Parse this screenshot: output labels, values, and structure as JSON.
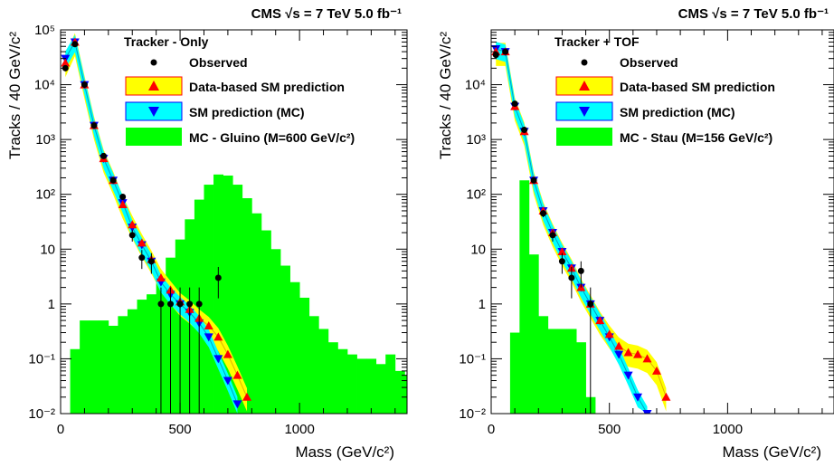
{
  "chart_data": [
    {
      "type": "histogram",
      "header": "CMS  √s = 7 TeV   5.0 fb⁻¹",
      "panel_label": "Tracker - Only",
      "xlabel": "Mass (GeV/c²)",
      "ylabel": "Tracks / 40 GeV/c²",
      "xlim": [
        0,
        1450
      ],
      "ylim": [
        0.01,
        100000
      ],
      "yscale": "log",
      "x_ticks": [
        0,
        500,
        1000
      ],
      "y_ticks": [
        "10⁻²",
        "10⁻¹",
        "1",
        "10",
        "10²",
        "10³",
        "10⁴",
        "10⁵"
      ],
      "legend": [
        "Observed",
        "Data-based SM prediction",
        "SM prediction (MC)",
        "MC - Gluino (M=600 GeV/c²)"
      ],
      "colors": {
        "observed": "#000000",
        "data_based": "#ffff00",
        "data_based_marker": "#ff0000",
        "mc": "#00ffff",
        "mc_marker": "#0000ff",
        "signal": "#00ff00"
      },
      "signal_bins": {
        "x0": 0,
        "width": 40,
        "values": [
          0.01,
          0.15,
          0.5,
          0.5,
          0.5,
          0.4,
          0.6,
          0.8,
          1.2,
          1.5,
          3,
          7,
          15,
          35,
          80,
          150,
          230,
          220,
          150,
          85,
          45,
          22,
          10,
          5,
          2.5,
          1.3,
          0.6,
          0.35,
          0.2,
          0.15,
          0.12,
          0.1,
          0.1,
          0.08,
          0.12,
          0.06,
          0.05,
          0.01,
          0.01,
          0.2
        ]
      },
      "observed": {
        "x": [
          20,
          60,
          100,
          140,
          180,
          220,
          260,
          300,
          340,
          380,
          420,
          460,
          500,
          540,
          580,
          660
        ],
        "y": [
          20000,
          55000,
          10000,
          1800,
          500,
          180,
          90,
          18,
          7,
          6,
          1,
          1,
          1,
          1,
          1,
          3
        ]
      },
      "data_based": {
        "x": [
          20,
          60,
          100,
          140,
          180,
          220,
          260,
          300,
          340,
          380,
          420,
          460,
          500,
          540,
          580,
          620,
          660,
          700,
          740,
          780
        ],
        "y": [
          25000,
          60000,
          10000,
          1800,
          450,
          180,
          65,
          28,
          13,
          6.5,
          3,
          1.8,
          1.1,
          0.8,
          0.55,
          0.4,
          0.25,
          0.12,
          0.05,
          0.02
        ]
      },
      "mc": {
        "x": [
          20,
          60,
          100,
          140,
          180,
          220,
          260,
          300,
          340,
          380,
          420,
          460,
          500,
          540,
          580,
          620,
          660,
          700,
          740
        ],
        "y": [
          30000,
          60000,
          10000,
          1800,
          450,
          180,
          70,
          25,
          12,
          6,
          2.5,
          1.5,
          1,
          0.7,
          0.45,
          0.25,
          0.1,
          0.04,
          0.015
        ]
      }
    },
    {
      "type": "histogram",
      "header": "CMS  √s = 7 TeV   5.0 fb⁻¹",
      "panel_label": "Tracker + TOF",
      "xlabel": "Mass (GeV/c²)",
      "ylabel": "Tracks / 40 GeV/c²",
      "xlim": [
        0,
        1450
      ],
      "ylim": [
        0.01,
        100000
      ],
      "yscale": "log",
      "x_ticks": [
        0,
        500,
        1000
      ],
      "y_ticks": [
        "10⁻²",
        "10⁻¹",
        "1",
        "10",
        "10²",
        "10³",
        "10⁴"
      ],
      "legend": [
        "Observed",
        "Data-based SM prediction",
        "SM prediction (MC)",
        "MC - Stau (M=156 GeV/c²)"
      ],
      "colors": {
        "observed": "#000000",
        "data_based": "#ffff00",
        "data_based_marker": "#ff0000",
        "mc": "#00ffff",
        "mc_marker": "#0000ff",
        "signal": "#00ff00"
      },
      "signal_bins": {
        "x0": 0,
        "width": 40,
        "values": [
          0.01,
          0.01,
          0.3,
          180,
          8,
          0.6,
          0.35,
          0.35,
          0.35,
          0.2,
          0.02,
          0.01
        ]
      },
      "observed": {
        "x": [
          20,
          60,
          100,
          140,
          180,
          220,
          260,
          300,
          340,
          380,
          420
        ],
        "y": [
          35000,
          40000,
          4500,
          1500,
          180,
          45,
          18,
          6,
          3,
          4,
          1
        ]
      },
      "data_based": {
        "x": [
          20,
          60,
          100,
          140,
          180,
          220,
          260,
          300,
          340,
          380,
          420,
          460,
          500,
          540,
          580,
          620,
          660,
          700,
          740
        ],
        "y": [
          40000,
          40000,
          4000,
          1400,
          180,
          50,
          20,
          9,
          4.5,
          2,
          1,
          0.5,
          0.28,
          0.17,
          0.13,
          0.12,
          0.1,
          0.06,
          0.02
        ]
      },
      "mc": {
        "x": [
          20,
          60,
          100,
          140,
          180,
          220,
          260,
          300,
          340,
          380,
          420,
          460,
          500,
          540,
          580,
          620,
          660
        ],
        "y": [
          45000,
          40000,
          4000,
          1400,
          180,
          50,
          20,
          9,
          4.5,
          2,
          1,
          0.5,
          0.25,
          0.12,
          0.05,
          0.02,
          0.01
        ]
      }
    }
  ]
}
